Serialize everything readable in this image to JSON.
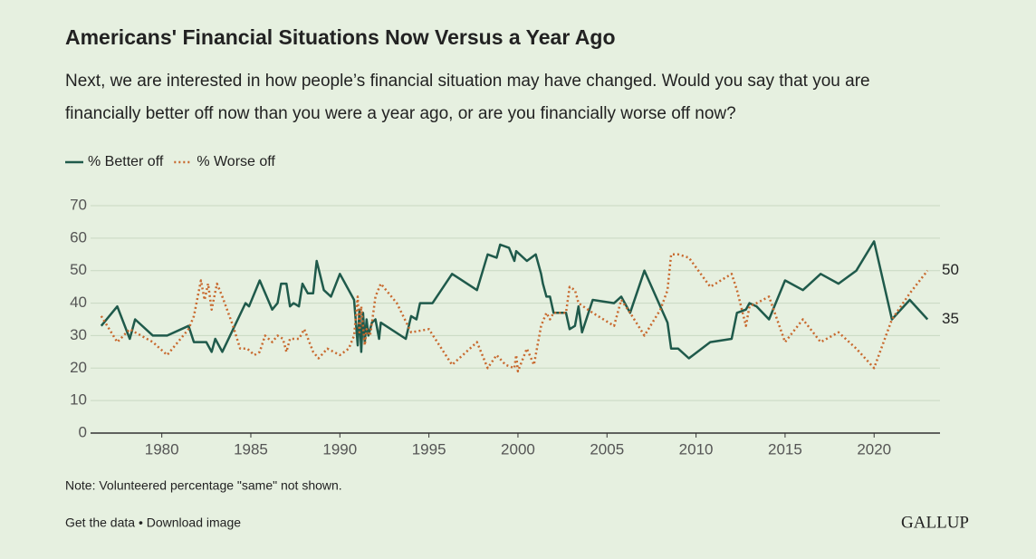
{
  "chart_data": {
    "type": "line",
    "title": "Americans' Financial Situations Now Versus a Year Ago",
    "subtitle": [
      "Next, we are interested in how people’s financial situation may have changed. Would you say that you are",
      "financially better off now than you were a year ago, or are you financially worse off now?"
    ],
    "xlim": [
      1976,
      2023.7
    ],
    "xticks": [
      1980,
      1985,
      1990,
      1995,
      2000,
      2005,
      2010,
      2015,
      2020
    ],
    "ylim": [
      0,
      70
    ],
    "yticks": [
      0,
      10,
      20,
      30,
      40,
      50,
      60,
      70
    ],
    "grid": true,
    "legend": "top-left",
    "series": [
      {
        "name": "% Better off",
        "color": "#1f5a4b",
        "style": "solid",
        "x": [
          1976.6,
          1977.5,
          1978.2,
          1978.5,
          1979.5,
          1980.3,
          1981.5,
          1981.8,
          1982.5,
          1982.8,
          1983.0,
          1983.4,
          1984.7,
          1984.9,
          1985.5,
          1986.2,
          1986.5,
          1986.7,
          1987.0,
          1987.2,
          1987.4,
          1987.7,
          1987.9,
          1988.2,
          1988.5,
          1988.7,
          1989.1,
          1989.5,
          1990.0,
          1990.5,
          1990.8,
          1991.0,
          1991.1,
          1991.2,
          1991.3,
          1991.4,
          1991.5,
          1991.6,
          1991.8,
          1992.0,
          1992.2,
          1992.3,
          1993.7,
          1994.0,
          1994.3,
          1994.5,
          1995.2,
          1996.3,
          1997.7,
          1998.3,
          1998.8,
          1999.0,
          1999.5,
          1999.8,
          1999.9,
          2000.5,
          2001.0,
          2001.3,
          2001.4,
          2001.6,
          2001.8,
          2002.0,
          2002.7,
          2002.9,
          2003.2,
          2003.4,
          2003.6,
          2004.2,
          2005.4,
          2005.8,
          2006.3,
          2007.1,
          2008.4,
          2008.6,
          2009.0,
          2009.6,
          2010.8,
          2012.0,
          2012.3,
          2012.8,
          2013.0,
          2013.4,
          2014.1,
          2015.0,
          2016.0,
          2017.0,
          2018.0,
          2019.0,
          2020.0,
          2021.0,
          2022.0,
          2023.0
        ],
        "values": [
          33,
          39,
          29,
          35,
          30,
          30,
          33,
          28,
          28,
          25,
          29,
          25,
          40,
          39,
          47,
          38,
          40,
          46,
          46,
          39,
          40,
          39,
          46,
          43,
          43,
          53,
          44,
          42,
          49,
          44,
          41,
          27,
          38,
          25,
          37,
          28,
          35,
          30,
          34,
          35,
          29,
          34,
          29,
          36,
          35,
          40,
          40,
          49,
          44,
          55,
          54,
          58,
          57,
          53,
          56,
          53,
          55,
          49,
          46,
          42,
          42,
          37,
          37,
          32,
          33,
          39,
          31,
          41,
          40,
          42,
          37,
          50,
          34,
          26,
          26,
          23,
          28,
          29,
          37,
          38,
          40,
          39,
          35,
          47,
          44,
          49,
          46,
          50,
          59,
          35,
          41,
          35
        ]
      },
      {
        "name": "% Worse off",
        "color": "#c8692e",
        "style": "dotted",
        "x": [
          1976.6,
          1977.5,
          1978.2,
          1978.5,
          1979.5,
          1980.3,
          1981.5,
          1981.8,
          1982.2,
          1982.4,
          1982.6,
          1982.8,
          1983.1,
          1983.4,
          1984.0,
          1984.4,
          1984.8,
          1985.2,
          1985.5,
          1985.8,
          1986.2,
          1986.5,
          1986.8,
          1987.0,
          1987.2,
          1987.7,
          1988.0,
          1988.5,
          1988.8,
          1989.3,
          1990.0,
          1990.5,
          1990.8,
          1991.0,
          1991.1,
          1991.2,
          1991.4,
          1991.5,
          1991.7,
          1991.9,
          1992.0,
          1992.3,
          1993.2,
          1994.0,
          1995.0,
          1996.3,
          1997.7,
          1998.3,
          1998.8,
          1999.3,
          1999.8,
          1999.9,
          2000.0,
          2000.5,
          2000.9,
          2001.3,
          2001.6,
          2001.8,
          2002.0,
          2002.7,
          2002.9,
          2003.2,
          2003.4,
          2004.2,
          2005.4,
          2005.8,
          2006.3,
          2007.1,
          2008.0,
          2008.4,
          2008.6,
          2009.0,
          2009.6,
          2010.8,
          2012.0,
          2012.3,
          2012.8,
          2013.0,
          2013.4,
          2014.1,
          2015.0,
          2016.0,
          2017.0,
          2018.0,
          2019.0,
          2020.0,
          2021.0,
          2022.0,
          2023.0
        ],
        "values": [
          36,
          28,
          32,
          31,
          28,
          24,
          32,
          36,
          47,
          41,
          46,
          38,
          46,
          42,
          33,
          26,
          26,
          24,
          25,
          30,
          28,
          30,
          29,
          25,
          29,
          29,
          32,
          25,
          23,
          26,
          24,
          26,
          30,
          42,
          31,
          39,
          27,
          32,
          30,
          38,
          42,
          46,
          40,
          31,
          32,
          21,
          28,
          20,
          24,
          21,
          20,
          24,
          19,
          26,
          21,
          33,
          37,
          35,
          37,
          37,
          45,
          44,
          40,
          37,
          33,
          41,
          37,
          30,
          38,
          44,
          55,
          55,
          54,
          45,
          49,
          44,
          33,
          39,
          40,
          42,
          28,
          35,
          28,
          31,
          26,
          20,
          35,
          43,
          50
        ]
      }
    ],
    "note": "Note: Volunteered percentage \"same\" not shown.",
    "footer": "Get the data • Download image",
    "logo": "GALLUP"
  }
}
